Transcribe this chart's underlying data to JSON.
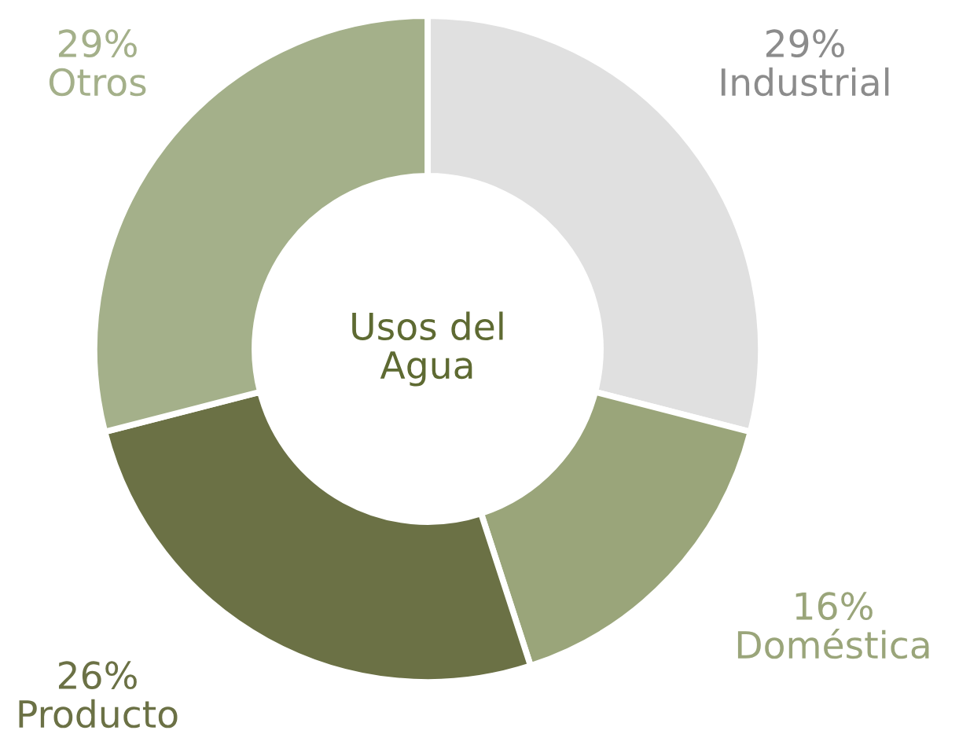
{
  "chart_data": {
    "type": "donut",
    "title": "Usos del\nAgua",
    "categories": [
      "Industrial",
      "Doméstica",
      "Producto",
      "Otros"
    ],
    "values": [
      29,
      16,
      26,
      29
    ],
    "value_labels": [
      "29%",
      "16%",
      "26%",
      "29%"
    ],
    "colors": [
      "#e0e0e0",
      "#9aa57a",
      "#6b7145",
      "#a4b08a"
    ]
  }
}
